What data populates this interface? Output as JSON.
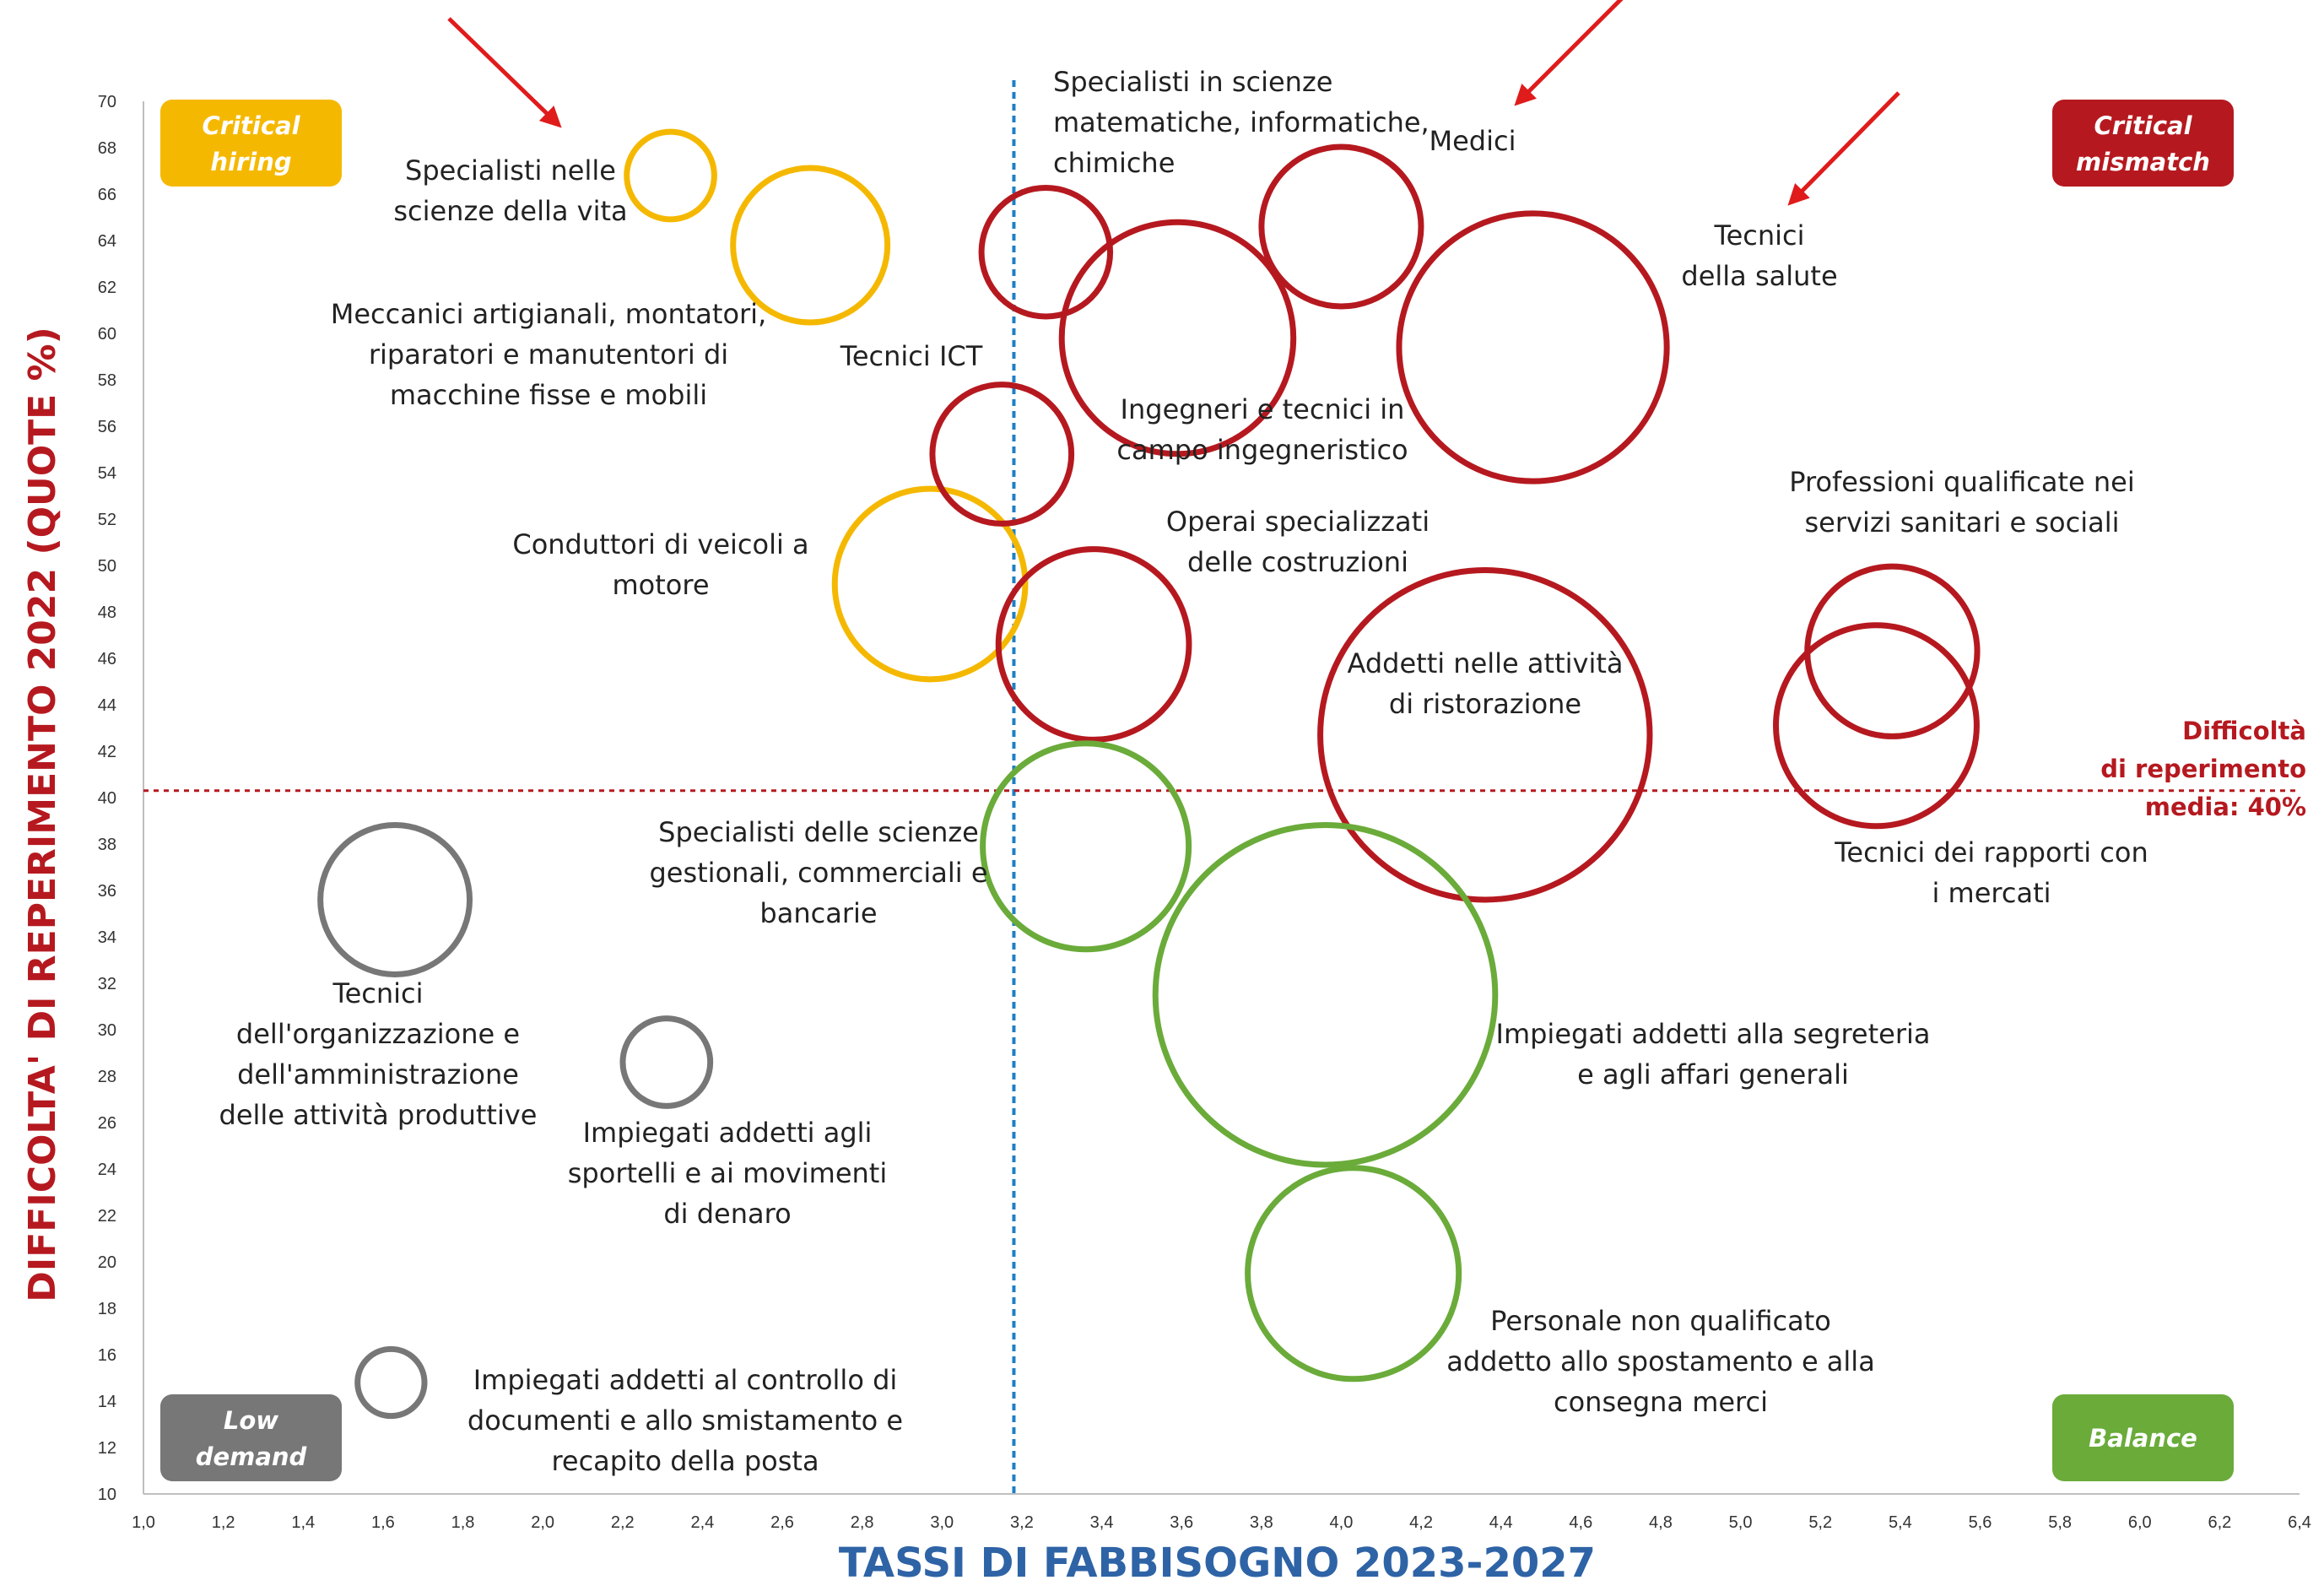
{
  "chart_data": {
    "type": "bubble",
    "xlabel": "TASSI DI FABBISOGNO 2023-2027",
    "ylabel": "DIFFICOLTA' DI REPERIMENTO 2022 (QUOTE %)",
    "xlim": [
      1.0,
      6.4
    ],
    "ylim": [
      10,
      70
    ],
    "x_ticks": [
      "1,0",
      "1,2",
      "1,4",
      "1,6",
      "1,8",
      "2,0",
      "2,2",
      "2,4",
      "2,6",
      "2,8",
      "3,0",
      "3,2",
      "3,4",
      "3,6",
      "3,8",
      "4,0",
      "4,2",
      "4,4",
      "4,6",
      "4,8",
      "5,0",
      "5,2",
      "5,4",
      "5,6",
      "5,8",
      "6,0",
      "6,2",
      "6,4"
    ],
    "y_ticks": [
      "10",
      "12",
      "14",
      "16",
      "18",
      "20",
      "22",
      "24",
      "26",
      "28",
      "30",
      "32",
      "34",
      "36",
      "38",
      "40",
      "42",
      "44",
      "46",
      "48",
      "50",
      "52",
      "54",
      "56",
      "58",
      "60",
      "62",
      "64",
      "66",
      "68",
      "70"
    ],
    "vertical_reference": {
      "x": 3.18,
      "color": "#1f7fc4"
    },
    "horizontal_reference": {
      "y": 40.3,
      "label": [
        "Difficoltà",
        "di reperimento",
        "media: 40%"
      ],
      "color": "#b5191f"
    },
    "colors": {
      "critical_hiring": "#f5b800",
      "critical_mismatch": "#b5191f",
      "low_demand": "#777777",
      "balance": "#6aab3a"
    },
    "quadrants": [
      {
        "id": "critical_hiring",
        "label": [
          "Critical",
          "hiring"
        ],
        "position": "top-left"
      },
      {
        "id": "critical_mismatch",
        "label": [
          "Critical",
          "mismatch"
        ],
        "position": "top-right"
      },
      {
        "id": "low_demand",
        "label": [
          "Low",
          "demand"
        ],
        "position": "bottom-left"
      },
      {
        "id": "balance",
        "label": [
          "Balance"
        ],
        "position": "bottom-right"
      }
    ],
    "bubbles": [
      {
        "label": [
          "Specialisti nelle",
          "scienze della vita"
        ],
        "x": 2.32,
        "y": 66.8,
        "size": 17,
        "group": "critical_hiring"
      },
      {
        "label": [
          "Meccanici artigianali, montatori,",
          "riparatori e manutentori di",
          "macchine fisse e mobili"
        ],
        "x": 2.67,
        "y": 63.8,
        "size": 30,
        "group": "critical_hiring"
      },
      {
        "label": [
          "Conduttori di veicoli a",
          "motore"
        ],
        "x": 2.97,
        "y": 49.2,
        "size": 37,
        "group": "critical_hiring"
      },
      {
        "label": [
          "Specialisti in scienze",
          "matematiche, informatiche,",
          "chimiche"
        ],
        "x": 3.26,
        "y": 63.5,
        "size": 25,
        "group": "critical_mismatch"
      },
      {
        "label": [
          "Tecnici ICT"
        ],
        "x": 3.15,
        "y": 54.8,
        "size": 27,
        "group": "critical_mismatch"
      },
      {
        "label": [
          "Medici"
        ],
        "x": 4.0,
        "y": 64.6,
        "size": 31,
        "group": "critical_mismatch"
      },
      {
        "label": [
          "Ingegneri e tecnici in",
          "campo ingegneristico"
        ],
        "x": 3.59,
        "y": 59.8,
        "size": 45,
        "group": "critical_mismatch"
      },
      {
        "label": [
          "Tecnici",
          "della salute"
        ],
        "x": 4.48,
        "y": 59.4,
        "size": 52,
        "group": "critical_mismatch"
      },
      {
        "label": [
          "Operai specializzati",
          "delle costruzioni"
        ],
        "x": 3.38,
        "y": 46.6,
        "size": 37,
        "group": "critical_mismatch"
      },
      {
        "label": [
          "Addetti nelle attività",
          "di ristorazione"
        ],
        "x": 4.36,
        "y": 42.7,
        "size": 64,
        "group": "critical_mismatch"
      },
      {
        "label": [
          "Professioni qualificate nei",
          "servizi sanitari e sociali"
        ],
        "x": 5.38,
        "y": 46.3,
        "size": 33,
        "group": "critical_mismatch"
      },
      {
        "label": [
          "Tecnici dei rapporti con",
          "i mercati"
        ],
        "x": 5.34,
        "y": 43.1,
        "size": 39,
        "group": "critical_mismatch"
      },
      {
        "label": [
          "Specialisti delle scienze",
          "gestionali, commerciali e",
          "bancarie"
        ],
        "x": 3.36,
        "y": 37.9,
        "size": 40,
        "group": "balance"
      },
      {
        "label": [
          "Impiegati addetti alla segreteria",
          "e agli affari generali"
        ],
        "x": 3.96,
        "y": 31.5,
        "size": 66,
        "group": "balance"
      },
      {
        "label": [
          "Personale non qualificato",
          "addetto allo spostamento e alla",
          "consegna merci"
        ],
        "x": 4.03,
        "y": 19.5,
        "size": 41,
        "group": "balance"
      },
      {
        "label": [
          "Tecnici",
          "dell'organizzazione e",
          "dell'amministrazione",
          "delle attività produttive"
        ],
        "x": 1.63,
        "y": 35.6,
        "size": 29,
        "group": "low_demand"
      },
      {
        "label": [
          "Impiegati addetti agli",
          "sportelli e ai movimenti",
          "di denaro"
        ],
        "x": 2.31,
        "y": 28.6,
        "size": 17,
        "group": "low_demand"
      },
      {
        "label": [
          "Impiegati addetti al controllo di",
          "documenti e allo smistamento e",
          "recapito della posta"
        ],
        "x": 1.62,
        "y": 14.8,
        "size": 13,
        "group": "low_demand"
      }
    ],
    "annotation_arrows": [
      {
        "target": "Specialisti nelle scienze della vita",
        "color": "#e01b1b"
      },
      {
        "target": "Medici",
        "color": "#e01b1b"
      },
      {
        "target": "Tecnici della salute",
        "color": "#e01b1b"
      }
    ]
  }
}
